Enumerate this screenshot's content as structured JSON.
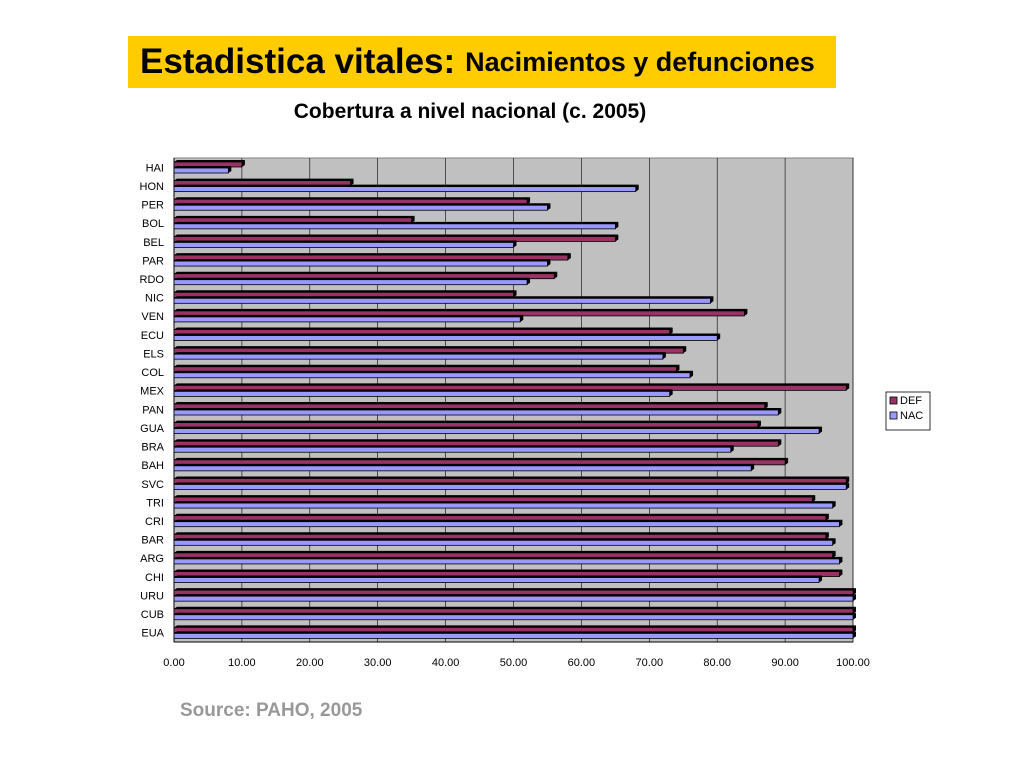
{
  "header": {
    "title_main": "Estadistica vitales:",
    "title_sub": "Nacimientos y defunciones"
  },
  "footer": {
    "source": "Source: PAHO, 2005"
  },
  "chart_data": {
    "type": "bar",
    "orientation": "horizontal",
    "title": "Cobertura a nivel nacional (c. 2005)",
    "categories": [
      "HAI",
      "HON",
      "PER",
      "BOL",
      "BEL",
      "PAR",
      "RDO",
      "NIC",
      "VEN",
      "ECU",
      "ELS",
      "COL",
      "MEX",
      "PAN",
      "GUA",
      "BRA",
      "BAH",
      "SVC",
      "TRI",
      "CRI",
      "BAR",
      "ARG",
      "CHI",
      "URU",
      "CUB",
      "EUA"
    ],
    "series": [
      {
        "name": "DEF",
        "color": "#993366",
        "values": [
          10,
          26,
          52,
          35,
          65,
          58,
          56,
          50,
          84,
          73,
          75,
          74,
          99,
          87,
          86,
          89,
          90,
          99,
          94,
          96,
          96,
          97,
          98,
          100,
          100,
          100
        ]
      },
      {
        "name": "NAC",
        "color": "#9999ff",
        "values": [
          8,
          68,
          55,
          65,
          50,
          55,
          52,
          79,
          51,
          80,
          72,
          76,
          73,
          89,
          95,
          82,
          85,
          99,
          97,
          98,
          97,
          98,
          95,
          100,
          100,
          100
        ]
      }
    ],
    "xlim": [
      0,
      100
    ],
    "xticks": [
      "0.00",
      "10.00",
      "20.00",
      "30.00",
      "40.00",
      "50.00",
      "60.00",
      "70.00",
      "80.00",
      "90.00",
      "100.00"
    ],
    "grid": true,
    "plot_background": "#c0c0c0",
    "legend_position": "right"
  }
}
